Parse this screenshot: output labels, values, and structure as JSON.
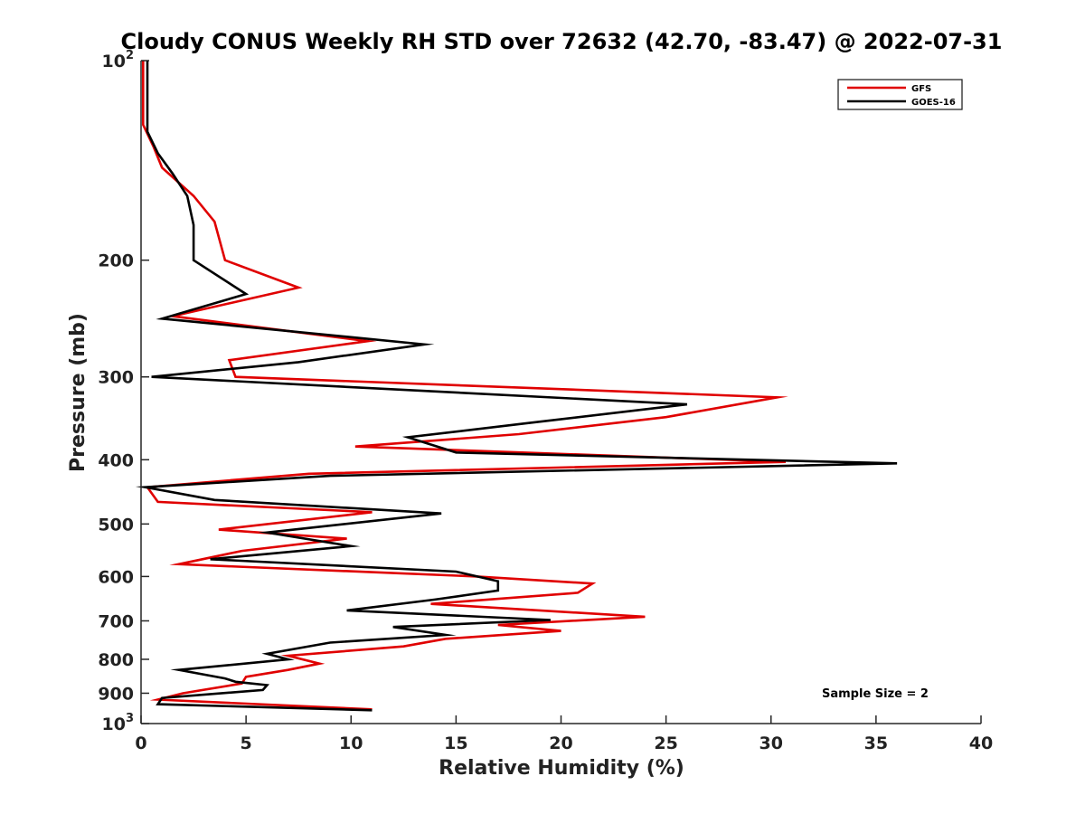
{
  "chart_data": {
    "type": "line",
    "title": "Cloudy CONUS Weekly RH STD over 72632 (42.70, -83.47) @ 2022-07-31",
    "xlabel": "Relative Humidity (%)",
    "ylabel": "Pressure (mb)",
    "xlim": [
      0,
      40
    ],
    "ylim": [
      100,
      1000
    ],
    "yscale": "log",
    "y_inverted": true,
    "x_ticks": [
      0,
      5,
      10,
      15,
      20,
      25,
      30,
      35,
      40
    ],
    "x_tick_labels": [
      "0",
      "5",
      "10",
      "15",
      "20",
      "25",
      "30",
      "35",
      "40"
    ],
    "y_ticks": [
      {
        "value": 100,
        "base": "10",
        "exp": "2"
      },
      {
        "value": 200,
        "label": "200"
      },
      {
        "value": 300,
        "label": "300"
      },
      {
        "value": 400,
        "label": "400"
      },
      {
        "value": 500,
        "label": "500"
      },
      {
        "value": 600,
        "label": "600"
      },
      {
        "value": 700,
        "label": "700"
      },
      {
        "value": 800,
        "label": "800"
      },
      {
        "value": 900,
        "label": "900"
      },
      {
        "value": 1000,
        "base": "10",
        "exp": "3"
      }
    ],
    "grid": false,
    "legend_position": "top-right",
    "annotation": "Sample Size = 2",
    "series": [
      {
        "name": "GFS",
        "color": "#e00000",
        "points": [
          [
            0.1,
            100
          ],
          [
            0.1,
            125
          ],
          [
            0.6,
            135
          ],
          [
            1.0,
            145
          ],
          [
            2.5,
            160
          ],
          [
            3.5,
            175
          ],
          [
            4.0,
            200
          ],
          [
            7.5,
            220
          ],
          [
            1.5,
            243
          ],
          [
            10.8,
            265
          ],
          [
            4.2,
            283
          ],
          [
            4.5,
            300
          ],
          [
            30.3,
            322
          ],
          [
            25.0,
            345
          ],
          [
            18.0,
            366
          ],
          [
            10.2,
            382
          ],
          [
            30.7,
            403
          ],
          [
            8.0,
            420
          ],
          [
            0.3,
            440
          ],
          [
            0.8,
            463
          ],
          [
            11.0,
            480
          ],
          [
            3.7,
            510
          ],
          [
            9.8,
            526
          ],
          [
            4.8,
            549
          ],
          [
            1.8,
            575
          ],
          [
            16.0,
            600
          ],
          [
            21.5,
            615
          ],
          [
            20.8,
            635
          ],
          [
            13.8,
            660
          ],
          [
            24.0,
            690
          ],
          [
            17.0,
            710
          ],
          [
            20.0,
            725
          ],
          [
            14.5,
            745
          ],
          [
            12.5,
            765
          ],
          [
            7.0,
            790
          ],
          [
            8.5,
            812
          ],
          [
            7.0,
            830
          ],
          [
            5.0,
            850
          ],
          [
            4.8,
            870
          ],
          [
            2.0,
            900
          ],
          [
            0.8,
            920
          ],
          [
            11.0,
            952
          ]
        ]
      },
      {
        "name": "GOES-16",
        "color": "#000000",
        "points": [
          [
            0.3,
            100
          ],
          [
            0.3,
            128
          ],
          [
            0.8,
            138
          ],
          [
            1.5,
            148
          ],
          [
            2.2,
            160
          ],
          [
            2.5,
            177
          ],
          [
            2.5,
            200
          ],
          [
            5.0,
            225
          ],
          [
            1.0,
            245
          ],
          [
            13.5,
            268
          ],
          [
            7.5,
            285
          ],
          [
            0.5,
            300
          ],
          [
            26.0,
            330
          ],
          [
            18.5,
            352
          ],
          [
            12.7,
            370
          ],
          [
            15.0,
            390
          ],
          [
            36.0,
            405
          ],
          [
            9.0,
            423
          ],
          [
            0.2,
            440
          ],
          [
            3.5,
            460
          ],
          [
            14.3,
            482
          ],
          [
            6.0,
            515
          ],
          [
            10.0,
            540
          ],
          [
            3.3,
            565
          ],
          [
            15.0,
            590
          ],
          [
            17.0,
            610
          ],
          [
            17.0,
            630
          ],
          [
            14.0,
            650
          ],
          [
            9.8,
            675
          ],
          [
            19.5,
            698
          ],
          [
            12.0,
            715
          ],
          [
            14.5,
            735
          ],
          [
            9.0,
            755
          ],
          [
            6.0,
            785
          ],
          [
            7.0,
            800
          ],
          [
            1.8,
            830
          ],
          [
            4.0,
            855
          ],
          [
            4.5,
            865
          ],
          [
            6.0,
            875
          ],
          [
            5.8,
            890
          ],
          [
            1.0,
            915
          ],
          [
            0.8,
            935
          ],
          [
            11.0,
            955
          ]
        ]
      }
    ]
  }
}
